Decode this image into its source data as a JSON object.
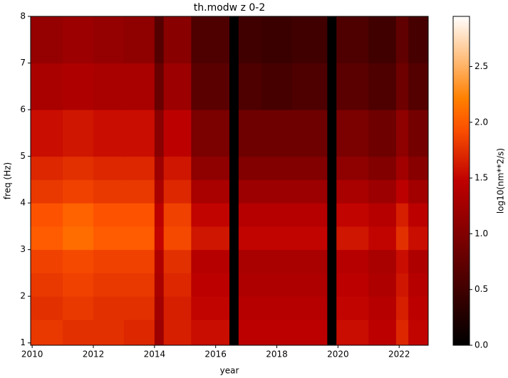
{
  "chart_data": {
    "type": "heatmap",
    "title": "th.modw z 0-2",
    "xlabel": "year",
    "ylabel": "freq (Hz)",
    "colorbar_label": "log10(nm**2/s)",
    "colormap": "gist_heat",
    "x_edges": [
      2009.95,
      2011,
      2012,
      2013,
      2014,
      2014.3,
      2015.2,
      2016.45,
      2016.75,
      2017.5,
      2018.5,
      2019.65,
      2019.95,
      2021,
      2021.9,
      2022.3,
      2022.95
    ],
    "y_edges": [
      0.95,
      1.5,
      2,
      2.5,
      3,
      3.5,
      4,
      4.5,
      5,
      6,
      7,
      8
    ],
    "z": [
      [
        1.8,
        1.75,
        1.75,
        1.7,
        1.2,
        1.65,
        1.55,
        0,
        1.45,
        1.45,
        1.45,
        0,
        1.55,
        1.45,
        1.7,
        1.5
      ],
      [
        1.75,
        1.8,
        1.75,
        1.75,
        1.25,
        1.65,
        1.5,
        0,
        1.4,
        1.4,
        1.4,
        0,
        1.5,
        1.4,
        1.65,
        1.45
      ],
      [
        1.8,
        1.85,
        1.8,
        1.8,
        1.3,
        1.7,
        1.45,
        0,
        1.35,
        1.35,
        1.35,
        0,
        1.45,
        1.35,
        1.6,
        1.4
      ],
      [
        1.85,
        1.9,
        1.85,
        1.85,
        1.35,
        1.75,
        1.4,
        0,
        1.3,
        1.3,
        1.3,
        0,
        1.4,
        1.3,
        1.55,
        1.35
      ],
      [
        2.0,
        2.1,
        2.0,
        2.0,
        1.5,
        1.9,
        1.6,
        0,
        1.5,
        1.5,
        1.5,
        0,
        1.6,
        1.5,
        1.75,
        1.55
      ],
      [
        1.95,
        2.05,
        1.95,
        1.95,
        1.45,
        1.85,
        1.5,
        0,
        1.4,
        1.4,
        1.4,
        0,
        1.5,
        1.4,
        1.65,
        1.45
      ],
      [
        1.8,
        1.85,
        1.8,
        1.8,
        1.3,
        1.7,
        1.3,
        0,
        1.2,
        1.2,
        1.2,
        0,
        1.3,
        1.2,
        1.45,
        1.25
      ],
      [
        1.7,
        1.75,
        1.7,
        1.7,
        1.2,
        1.6,
        1.1,
        0,
        1.0,
        1.0,
        1.0,
        0,
        1.1,
        1.0,
        1.25,
        1.05
      ],
      [
        1.55,
        1.6,
        1.55,
        1.55,
        1.05,
        1.45,
        0.95,
        0,
        0.85,
        0.85,
        0.85,
        0,
        0.95,
        0.85,
        1.1,
        0.9
      ],
      [
        1.3,
        1.35,
        1.3,
        1.3,
        0.8,
        1.2,
        0.7,
        0,
        0.6,
        0.55,
        0.6,
        0,
        0.7,
        0.6,
        0.85,
        0.65
      ],
      [
        1.15,
        1.2,
        1.15,
        1.1,
        0.65,
        1.05,
        0.6,
        0,
        0.5,
        0.45,
        0.5,
        0,
        0.6,
        0.5,
        0.75,
        0.55
      ]
    ],
    "xlim": [
      2009.95,
      2022.95
    ],
    "ylim": [
      0.95,
      8
    ],
    "clim": [
      0,
      2.95
    ],
    "xticks": [
      2010,
      2012,
      2014,
      2016,
      2018,
      2020,
      2022
    ],
    "yticks": [
      1,
      2,
      3,
      4,
      5,
      6,
      7,
      8
    ],
    "cticks": [
      {
        "value": 0,
        "label": "0.0"
      },
      {
        "value": 0.5,
        "label": "0.5"
      },
      {
        "value": 1,
        "label": "1.0"
      },
      {
        "value": 1.5,
        "label": "1.5"
      },
      {
        "value": 2,
        "label": "2.0"
      },
      {
        "value": 2.5,
        "label": "2.5"
      }
    ]
  }
}
